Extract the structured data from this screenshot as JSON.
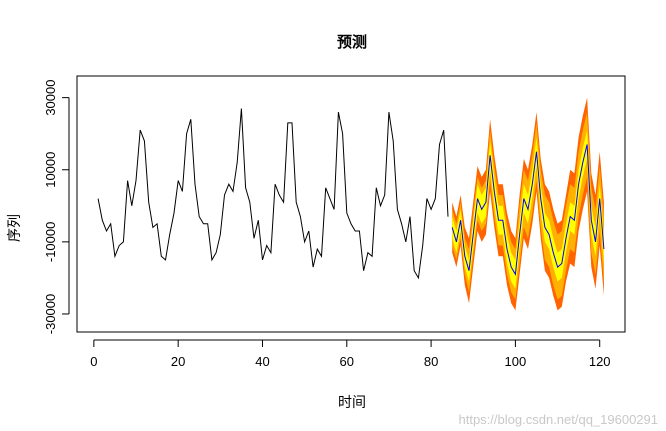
{
  "chart_data": {
    "type": "line",
    "title": "预测",
    "xlabel": "时间",
    "ylabel": "序列",
    "xlim": [
      -4,
      126
    ],
    "ylim": [
      -35000,
      36000
    ],
    "xticks": [
      0,
      20,
      40,
      60,
      80,
      100,
      120
    ],
    "yticks": [
      -30000,
      -10000,
      10000,
      30000
    ],
    "grid": false,
    "legend": "none",
    "series": [
      {
        "role": "observed",
        "color": "#000000",
        "x": [
          1,
          2,
          3,
          4,
          5,
          6,
          7,
          8,
          9,
          10,
          11,
          12,
          13,
          14,
          15,
          16,
          17,
          18,
          19,
          20,
          21,
          22,
          23,
          24,
          25,
          26,
          27,
          28,
          29,
          30,
          31,
          32,
          33,
          34,
          35,
          36,
          37,
          38,
          39,
          40,
          41,
          42,
          43,
          44,
          45,
          46,
          47,
          48,
          49,
          50,
          51,
          52,
          53,
          54,
          55,
          56,
          57,
          58,
          59,
          60,
          61,
          62,
          63,
          64,
          65,
          66,
          67,
          68,
          69,
          70,
          71,
          72,
          73,
          74,
          75,
          76,
          77,
          78,
          79,
          80,
          81,
          82,
          83,
          84
        ],
        "y": [
          2000,
          -4000,
          -7000,
          -5000,
          -14000,
          -11000,
          -10000,
          7000,
          0,
          7000,
          21000,
          18000,
          1000,
          -6000,
          -5000,
          -14000,
          -15000,
          -8000,
          -2000,
          7000,
          4000,
          20000,
          24000,
          6000,
          -3000,
          -5000,
          -5000,
          -15000,
          -13000,
          -8000,
          3000,
          6000,
          4000,
          12000,
          27000,
          5000,
          1000,
          -9000,
          -4000,
          -15000,
          -11000,
          -13000,
          6000,
          3000,
          1000,
          23000,
          23000,
          1000,
          -3000,
          -10000,
          -7000,
          -17000,
          -12000,
          -14000,
          5000,
          2000,
          -1000,
          26000,
          20000,
          -2000,
          -5000,
          -7000,
          -7000,
          -18000,
          -13000,
          -14000,
          5000,
          0,
          3000,
          26000,
          18000,
          -1000,
          -5000,
          -10000,
          -3000,
          -18000,
          -20000,
          -11000,
          2000,
          -1000,
          2000,
          17000,
          21000,
          -3000
        ]
      },
      {
        "role": "forecast",
        "color": "#0000ff",
        "x": [
          85,
          86,
          87,
          88,
          89,
          90,
          91,
          92,
          93,
          94,
          95,
          96,
          97,
          98,
          99,
          100,
          101,
          102,
          103,
          104,
          105,
          106,
          107,
          108,
          109,
          110,
          111,
          112,
          113,
          114,
          115,
          116,
          117,
          118,
          119,
          120,
          121
        ],
        "y": [
          -6000,
          -10000,
          -4000,
          -14000,
          -18000,
          -8000,
          2000,
          -1000,
          1000,
          14000,
          4000,
          -4000,
          -4000,
          -12000,
          -17000,
          -19000,
          -8000,
          2000,
          -1000,
          6000,
          15000,
          2000,
          -6000,
          -8000,
          -13000,
          -17000,
          -16000,
          -9000,
          -3000,
          -4000,
          6000,
          12000,
          17000,
          -4000,
          -10000,
          2000,
          -12000
        ]
      }
    ],
    "bands": [
      {
        "color": "#ff6400",
        "lower": [
          -13000,
          -17000,
          -11000,
          -22000,
          -27000,
          -17000,
          -7000,
          -10000,
          -8000,
          4000,
          -6000,
          -14000,
          -14000,
          -22000,
          -27000,
          -29000,
          -19000,
          -9000,
          -12000,
          -5000,
          4000,
          -9000,
          -18000,
          -20000,
          -25000,
          -29000,
          -28000,
          -21000,
          -16000,
          -17000,
          -7000,
          -1000,
          4000,
          -17000,
          -23000,
          -11000,
          -25000
        ],
        "upper": [
          1000,
          -3000,
          3000,
          -6000,
          -9000,
          1000,
          11000,
          8000,
          10000,
          24000,
          14000,
          6000,
          6000,
          -2000,
          -7000,
          -9000,
          3000,
          13000,
          10000,
          17000,
          26000,
          13000,
          6000,
          4000,
          -1000,
          -5000,
          -4000,
          3000,
          10000,
          9000,
          19000,
          25000,
          30000,
          9000,
          3000,
          15000,
          1000
        ]
      },
      {
        "color": "#ffb000",
        "lower": [
          -11000,
          -15000,
          -9000,
          -19000,
          -24000,
          -14000,
          -4000,
          -7000,
          -5000,
          7000,
          -3000,
          -11000,
          -11000,
          -19000,
          -24000,
          -26000,
          -16000,
          -6000,
          -9000,
          -2000,
          7000,
          -6000,
          -15000,
          -17000,
          -22000,
          -26000,
          -25000,
          -18000,
          -12000,
          -13000,
          -3000,
          3000,
          8000,
          -13000,
          -19000,
          -7000,
          -21000
        ],
        "upper": [
          -1000,
          -5000,
          1000,
          -9000,
          -12000,
          -2000,
          8000,
          5000,
          7000,
          21000,
          11000,
          3000,
          3000,
          -5000,
          -10000,
          -12000,
          0,
          10000,
          7000,
          14000,
          23000,
          10000,
          3000,
          1000,
          -4000,
          -8000,
          -7000,
          0,
          6000,
          5000,
          15000,
          21000,
          26000,
          5000,
          -1000,
          11000,
          -3000
        ]
      },
      {
        "color": "#ffff00",
        "lower": [
          -9000,
          -13000,
          -7000,
          -17000,
          -21000,
          -12000,
          -2000,
          -5000,
          -3000,
          10000,
          0,
          -8000,
          -8000,
          -16000,
          -21000,
          -23000,
          -12000,
          -2000,
          -5000,
          2000,
          11000,
          -2000,
          -10000,
          -12000,
          -17000,
          -21000,
          -20000,
          -13000,
          -7000,
          -8000,
          2000,
          8000,
          13000,
          -8000,
          -14000,
          -2000,
          -16000
        ],
        "upper": [
          -3000,
          -7000,
          -1000,
          -11000,
          -15000,
          -4000,
          6000,
          3000,
          5000,
          18000,
          8000,
          0,
          0,
          -8000,
          -13000,
          -15000,
          -4000,
          6000,
          3000,
          10000,
          19000,
          6000,
          -2000,
          -4000,
          -9000,
          -13000,
          -12000,
          -5000,
          1000,
          0,
          10000,
          16000,
          21000,
          0,
          -6000,
          6000,
          -8000
        ]
      }
    ]
  },
  "watermark": "https://blog.csdn.net/qq_19600291"
}
